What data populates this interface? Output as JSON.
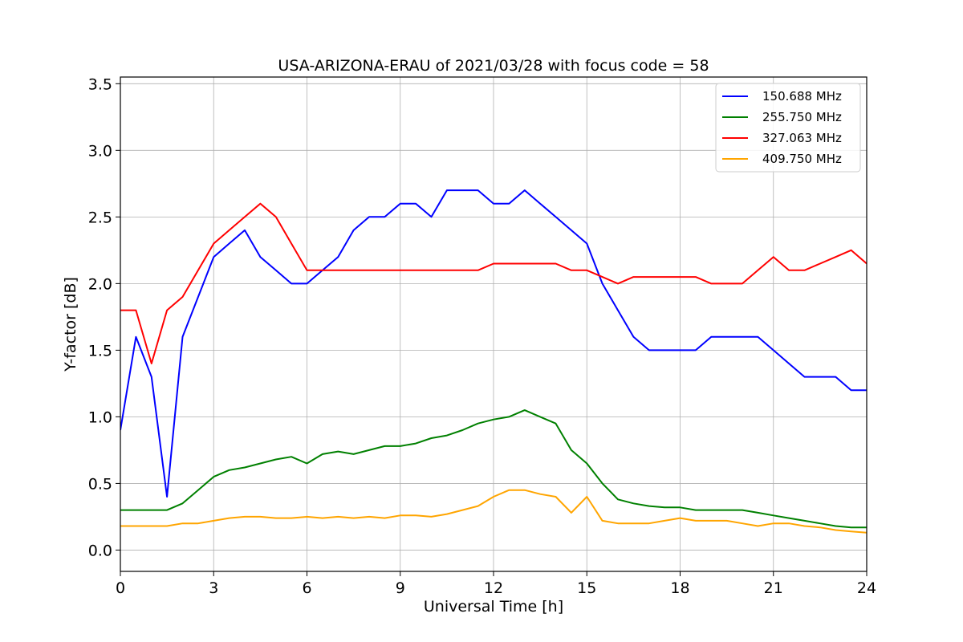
{
  "chart_data": {
    "type": "line",
    "title": "USA-ARIZONA-ERAU of 2021/03/28 with focus code = 58",
    "xlabel": "Universal Time [h]",
    "ylabel": "Y-factor [dB]",
    "xlim": [
      0,
      24
    ],
    "ylim": [
      -0.16,
      3.55
    ],
    "xticks": [
      0,
      3,
      6,
      9,
      12,
      15,
      18,
      21,
      24
    ],
    "xtick_labels": [
      "0",
      "3",
      "6",
      "9",
      "12",
      "15",
      "18",
      "21",
      "24"
    ],
    "yticks": [
      0.0,
      0.5,
      1.0,
      1.5,
      2.0,
      2.5,
      3.0,
      3.5
    ],
    "ytick_labels": [
      "0.0",
      "0.5",
      "1.0",
      "1.5",
      "2.0",
      "2.5",
      "3.0",
      "3.5"
    ],
    "grid": true,
    "legend_position": "top-right",
    "series": [
      {
        "name": "150.688 MHz",
        "color": "#0000ff",
        "x": [
          0,
          0.5,
          1,
          1.5,
          2,
          2.5,
          3,
          3.5,
          4,
          4.5,
          5,
          5.5,
          6,
          6.5,
          7,
          7.5,
          8,
          8.5,
          9,
          9.5,
          10,
          10.5,
          11,
          11.5,
          12,
          12.5,
          13,
          13.5,
          14,
          14.5,
          15,
          15.5,
          16,
          16.5,
          17,
          17.5,
          18,
          18.5,
          19,
          19.5,
          20,
          20.5,
          21,
          21.5,
          22,
          22.5,
          23,
          23.5,
          24
        ],
        "values": [
          0.9,
          1.6,
          1.3,
          0.4,
          1.6,
          1.9,
          2.2,
          2.3,
          2.4,
          2.2,
          2.1,
          2.0,
          2.0,
          2.1,
          2.2,
          2.4,
          2.5,
          2.5,
          2.6,
          2.6,
          2.5,
          2.7,
          2.7,
          2.7,
          2.6,
          2.6,
          2.7,
          2.6,
          2.5,
          2.4,
          2.3,
          2.0,
          1.8,
          1.6,
          1.5,
          1.5,
          1.5,
          1.5,
          1.6,
          1.6,
          1.6,
          1.6,
          1.5,
          1.4,
          1.3,
          1.3,
          1.3,
          1.2,
          1.2
        ]
      },
      {
        "name": "255.750 MHz",
        "color": "#008000",
        "x": [
          0,
          0.5,
          1,
          1.5,
          2,
          2.5,
          3,
          3.5,
          4,
          4.5,
          5,
          5.5,
          6,
          6.5,
          7,
          7.5,
          8,
          8.5,
          9,
          9.5,
          10,
          10.5,
          11,
          11.5,
          12,
          12.5,
          13,
          13.5,
          14,
          14.5,
          15,
          15.5,
          16,
          16.5,
          17,
          17.5,
          18,
          18.5,
          19,
          19.5,
          20,
          20.5,
          21,
          21.5,
          22,
          22.5,
          23,
          23.5,
          24
        ],
        "values": [
          0.3,
          0.3,
          0.3,
          0.3,
          0.35,
          0.45,
          0.55,
          0.6,
          0.62,
          0.65,
          0.68,
          0.7,
          0.65,
          0.72,
          0.74,
          0.72,
          0.75,
          0.78,
          0.78,
          0.8,
          0.84,
          0.86,
          0.9,
          0.95,
          0.98,
          1.0,
          1.05,
          1.0,
          0.95,
          0.75,
          0.65,
          0.5,
          0.38,
          0.35,
          0.33,
          0.32,
          0.32,
          0.3,
          0.3,
          0.3,
          0.3,
          0.28,
          0.26,
          0.24,
          0.22,
          0.2,
          0.18,
          0.17,
          0.17
        ]
      },
      {
        "name": "327.063 MHz",
        "color": "#ff0000",
        "x": [
          0,
          0.5,
          1,
          1.5,
          2,
          2.5,
          3,
          3.5,
          4,
          4.5,
          5,
          5.5,
          6,
          6.5,
          7,
          7.5,
          8,
          8.5,
          9,
          9.5,
          10,
          10.5,
          11,
          11.5,
          12,
          12.5,
          13,
          13.5,
          14,
          14.5,
          15,
          15.5,
          16,
          16.5,
          17,
          17.5,
          18,
          18.5,
          19,
          19.5,
          20,
          20.5,
          21,
          21.5,
          22,
          22.5,
          23,
          23.5,
          24
        ],
        "values": [
          1.8,
          1.8,
          1.4,
          1.8,
          1.9,
          2.1,
          2.3,
          2.4,
          2.5,
          2.6,
          2.5,
          2.3,
          2.1,
          2.1,
          2.1,
          2.1,
          2.1,
          2.1,
          2.1,
          2.1,
          2.1,
          2.1,
          2.1,
          2.1,
          2.15,
          2.15,
          2.15,
          2.15,
          2.15,
          2.1,
          2.1,
          2.05,
          2.0,
          2.05,
          2.05,
          2.05,
          2.05,
          2.05,
          2.0,
          2.0,
          2.0,
          2.1,
          2.2,
          2.1,
          2.1,
          2.15,
          2.2,
          2.25,
          2.15
        ]
      },
      {
        "name": "409.750 MHz",
        "color": "#ffa500",
        "x": [
          0,
          0.5,
          1,
          1.5,
          2,
          2.5,
          3,
          3.5,
          4,
          4.5,
          5,
          5.5,
          6,
          6.5,
          7,
          7.5,
          8,
          8.5,
          9,
          9.5,
          10,
          10.5,
          11,
          11.5,
          12,
          12.5,
          13,
          13.5,
          14,
          14.5,
          15,
          15.5,
          16,
          16.5,
          17,
          17.5,
          18,
          18.5,
          19,
          19.5,
          20,
          20.5,
          21,
          21.5,
          22,
          22.5,
          23,
          23.5,
          24
        ],
        "values": [
          0.18,
          0.18,
          0.18,
          0.18,
          0.2,
          0.2,
          0.22,
          0.24,
          0.25,
          0.25,
          0.24,
          0.24,
          0.25,
          0.24,
          0.25,
          0.24,
          0.25,
          0.24,
          0.26,
          0.26,
          0.25,
          0.27,
          0.3,
          0.33,
          0.4,
          0.45,
          0.45,
          0.42,
          0.4,
          0.28,
          0.4,
          0.22,
          0.2,
          0.2,
          0.2,
          0.22,
          0.24,
          0.22,
          0.22,
          0.22,
          0.2,
          0.18,
          0.2,
          0.2,
          0.18,
          0.17,
          0.15,
          0.14,
          0.13
        ]
      }
    ]
  }
}
